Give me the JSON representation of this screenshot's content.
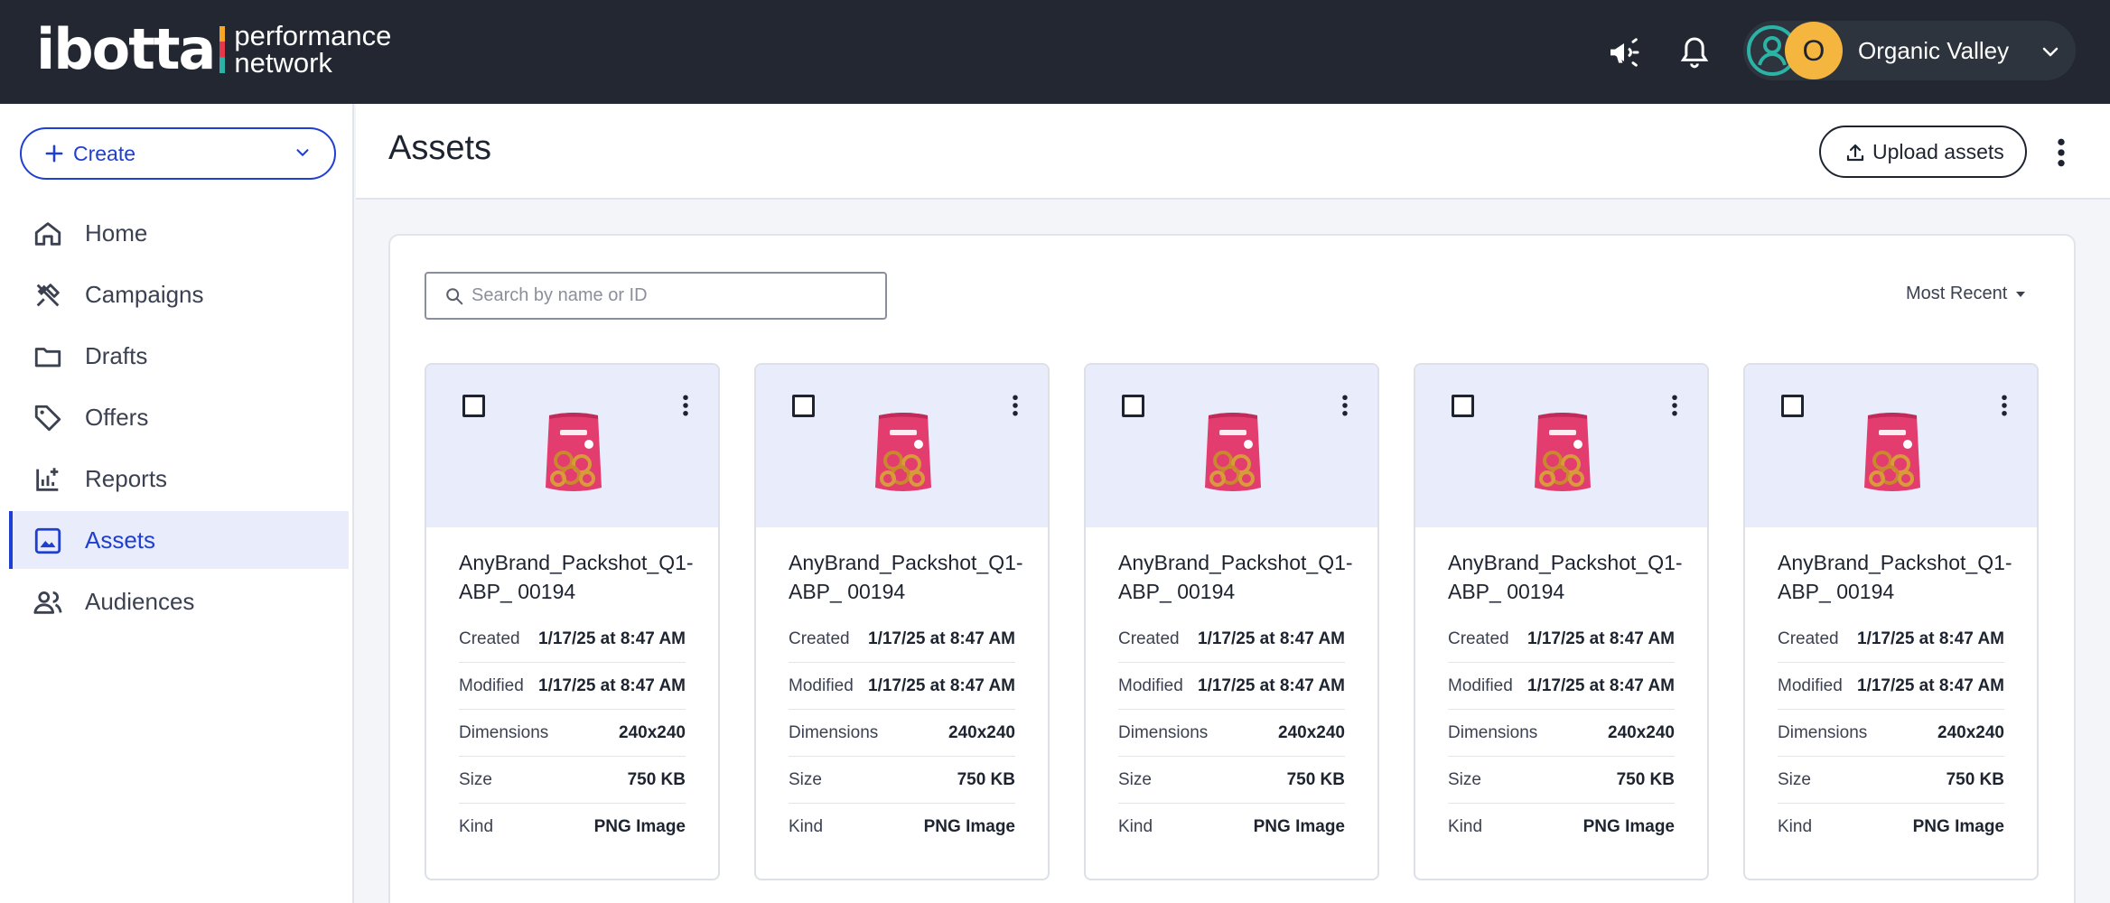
{
  "brand": {
    "logo_word": "ibotta",
    "logo_sub_line1": "performance",
    "logo_sub_line2": "network"
  },
  "topbar": {
    "icons": [
      "megaphone-icon",
      "bell-icon"
    ],
    "account": {
      "avatar_letter": "O",
      "name": "Organic Valley"
    }
  },
  "sidebar": {
    "create_label": "Create",
    "items": [
      {
        "label": "Home",
        "icon": "home-icon"
      },
      {
        "label": "Campaigns",
        "icon": "campaigns-icon"
      },
      {
        "label": "Drafts",
        "icon": "folder-icon"
      },
      {
        "label": "Offers",
        "icon": "tag-icon"
      },
      {
        "label": "Reports",
        "icon": "reports-icon"
      },
      {
        "label": "Assets",
        "icon": "image-icon",
        "active": true
      },
      {
        "label": "Audiences",
        "icon": "people-icon"
      }
    ]
  },
  "header": {
    "title": "Assets",
    "upload_label": "Upload assets"
  },
  "toolbar": {
    "search_placeholder": "Search by name or ID",
    "sort_label": "Most Recent"
  },
  "assets": [
    {
      "name": "AnyBrand_Packshot_Q1-ABP_ 00194",
      "created_label": "Created",
      "created": "1/17/25 at 8:47 AM",
      "modified_label": "Modified",
      "modified": "1/17/25 at 8:47 AM",
      "dimensions_label": "Dimensions",
      "dimensions": "240x240",
      "size_label": "Size",
      "size": "750 KB",
      "kind_label": "Kind",
      "kind": "PNG Image"
    },
    {
      "name": "AnyBrand_Packshot_Q1-ABP_ 00194",
      "created_label": "Created",
      "created": "1/17/25 at 8:47 AM",
      "modified_label": "Modified",
      "modified": "1/17/25 at 8:47 AM",
      "dimensions_label": "Dimensions",
      "dimensions": "240x240",
      "size_label": "Size",
      "size": "750 KB",
      "kind_label": "Kind",
      "kind": "PNG Image"
    },
    {
      "name": "AnyBrand_Packshot_Q1-ABP_ 00194",
      "created_label": "Created",
      "created": "1/17/25 at 8:47 AM",
      "modified_label": "Modified",
      "modified": "1/17/25 at 8:47 AM",
      "dimensions_label": "Dimensions",
      "dimensions": "240x240",
      "size_label": "Size",
      "size": "750 KB",
      "kind_label": "Kind",
      "kind": "PNG Image"
    },
    {
      "name": "AnyBrand_Packshot_Q1-ABP_ 00194",
      "created_label": "Created",
      "created": "1/17/25 at 8:47 AM",
      "modified_label": "Modified",
      "modified": "1/17/25 at 8:47 AM",
      "dimensions_label": "Dimensions",
      "dimensions": "240x240",
      "size_label": "Size",
      "size": "750 KB",
      "kind_label": "Kind",
      "kind": "PNG Image"
    },
    {
      "name": "AnyBrand_Packshot_Q1-ABP_ 00194",
      "created_label": "Created",
      "created": "1/17/25 at 8:47 AM",
      "modified_label": "Modified",
      "modified": "1/17/25 at 8:47 AM",
      "dimensions_label": "Dimensions",
      "dimensions": "240x240",
      "size_label": "Size",
      "size": "750 KB",
      "kind_label": "Kind",
      "kind": "PNG Image"
    }
  ],
  "colors": {
    "topbar_bg": "#222731",
    "accent_blue": "#1f3fd1",
    "active_nav_bg": "#e9ecfb",
    "avatar_yellow": "#f4b63e",
    "avatar_teal": "#2bb3a6",
    "pretzel_bag": "#e23d6e"
  }
}
